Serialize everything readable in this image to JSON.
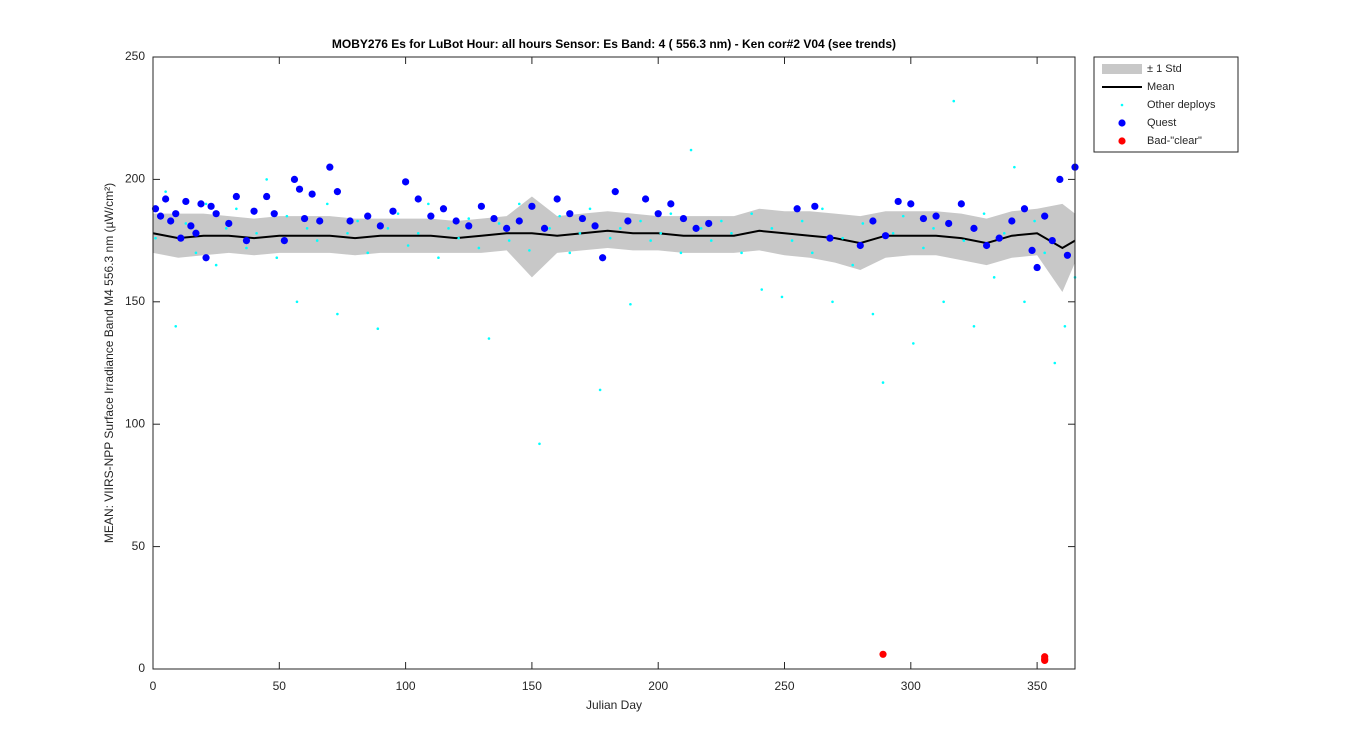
{
  "chart_data": {
    "type": "scatter",
    "title": "MOBY276   Es for LuBot  Hour: all hours  Sensor: Es Band: 4 ( 556.3 nm)  - Ken cor#2 V04 (see trends)",
    "x_label": "Julian Day",
    "y_label": "MEAN: VIIRS-NPP Surface Irradiance Band M4 556.3 nm (µW/cm²)",
    "xlim": [
      0,
      365
    ],
    "ylim": [
      0,
      250
    ],
    "xticks": [
      0,
      50,
      100,
      150,
      200,
      250,
      300,
      350
    ],
    "yticks": [
      0,
      50,
      100,
      150,
      200,
      250
    ],
    "legend": "outside-top-right",
    "series": [
      {
        "name": "± 1 Std",
        "color": "#c8c8c8",
        "style": "band",
        "x": [
          0,
          10,
          20,
          30,
          40,
          50,
          60,
          70,
          80,
          90,
          100,
          110,
          120,
          130,
          140,
          150,
          160,
          170,
          180,
          190,
          200,
          210,
          220,
          230,
          240,
          250,
          260,
          270,
          280,
          290,
          300,
          310,
          320,
          330,
          340,
          350,
          360,
          365
        ],
        "low": [
          170,
          168,
          169,
          170,
          169,
          170,
          170,
          170,
          169,
          170,
          170,
          170,
          170,
          170,
          171,
          160,
          170,
          171,
          172,
          171,
          171,
          170,
          170,
          170,
          171,
          169,
          168,
          166,
          163,
          168,
          169,
          169,
          167,
          165,
          168,
          169,
          154,
          166
        ],
        "high": [
          186,
          186,
          186,
          185,
          184,
          185,
          185,
          185,
          184,
          184,
          184,
          184,
          183,
          184,
          185,
          193,
          185,
          186,
          187,
          186,
          185,
          185,
          185,
          185,
          188,
          187,
          187,
          186,
          185,
          187,
          187,
          187,
          186,
          184,
          187,
          188,
          190,
          186
        ]
      },
      {
        "name": "Mean",
        "color": "#000000",
        "style": "line",
        "x": [
          0,
          10,
          20,
          30,
          40,
          50,
          60,
          70,
          80,
          90,
          100,
          110,
          120,
          130,
          140,
          150,
          160,
          170,
          180,
          190,
          200,
          210,
          220,
          230,
          240,
          250,
          260,
          270,
          280,
          290,
          300,
          310,
          320,
          330,
          340,
          350,
          360,
          365
        ],
        "values": [
          178,
          176,
          177,
          177,
          176,
          177,
          177,
          177,
          176,
          177,
          177,
          177,
          176,
          177,
          178,
          178,
          177,
          178,
          179,
          178,
          178,
          177,
          177,
          177,
          179,
          178,
          177,
          176,
          174,
          177,
          177,
          177,
          176,
          174,
          177,
          178,
          172,
          175
        ]
      },
      {
        "name": "Other deploys",
        "color": "#00ffff",
        "style": "dot",
        "x": [
          1,
          5,
          9,
          13,
          17,
          21,
          25,
          29,
          33,
          37,
          41,
          45,
          49,
          53,
          57,
          61,
          65,
          69,
          73,
          77,
          81,
          85,
          89,
          93,
          97,
          101,
          105,
          109,
          113,
          117,
          121,
          125,
          129,
          133,
          137,
          141,
          145,
          149,
          153,
          157,
          161,
          165,
          169,
          173,
          177,
          181,
          185,
          189,
          193,
          197,
          201,
          205,
          209,
          213,
          217,
          221,
          225,
          229,
          233,
          237,
          241,
          245,
          249,
          253,
          257,
          261,
          265,
          269,
          273,
          277,
          281,
          285,
          289,
          293,
          297,
          301,
          305,
          309,
          313,
          317,
          321,
          325,
          329,
          333,
          337,
          341,
          345,
          349,
          353,
          357,
          361,
          365
        ],
        "values": [
          176,
          195,
          140,
          182,
          170,
          190,
          165,
          180,
          188,
          172,
          178,
          200,
          168,
          185,
          150,
          180,
          175,
          190,
          145,
          178,
          183,
          170,
          139,
          180,
          186,
          173,
          178,
          190,
          168,
          180,
          176,
          184,
          172,
          135,
          182,
          175,
          190,
          171,
          92,
          180,
          185,
          170,
          178,
          188,
          114,
          176,
          180,
          149,
          183,
          175,
          178,
          186,
          170,
          212,
          180,
          175,
          183,
          178,
          170,
          186,
          155,
          180,
          152,
          175,
          183,
          170,
          188,
          150,
          176,
          165,
          182,
          145,
          117,
          178,
          185,
          133,
          172,
          180,
          150,
          232,
          175,
          140,
          186,
          160,
          178,
          205,
          150,
          183,
          170,
          125,
          140,
          160
        ]
      },
      {
        "name": "Quest",
        "color": "#0000ff",
        "style": "big",
        "x": [
          1,
          3,
          5,
          7,
          9,
          11,
          13,
          15,
          17,
          19,
          21,
          23,
          25,
          30,
          33,
          37,
          40,
          45,
          48,
          52,
          56,
          58,
          60,
          63,
          66,
          70,
          73,
          78,
          85,
          90,
          95,
          100,
          105,
          110,
          115,
          120,
          125,
          130,
          135,
          140,
          145,
          150,
          155,
          160,
          165,
          170,
          175,
          178,
          183,
          188,
          195,
          200,
          205,
          210,
          215,
          220,
          255,
          262,
          268,
          280,
          285,
          290,
          295,
          300,
          305,
          310,
          315,
          320,
          325,
          330,
          335,
          340,
          345,
          348,
          350,
          353,
          356,
          359,
          362,
          365
        ],
        "values": [
          188,
          185,
          192,
          183,
          186,
          176,
          191,
          181,
          178,
          190,
          168,
          189,
          186,
          182,
          193,
          175,
          187,
          193,
          186,
          175,
          200,
          196,
          184,
          194,
          183,
          205,
          195,
          183,
          185,
          181,
          187,
          199,
          192,
          185,
          188,
          183,
          181,
          189,
          184,
          180,
          183,
          189,
          180,
          192,
          186,
          184,
          181,
          168,
          195,
          183,
          192,
          186,
          190,
          184,
          180,
          182,
          188,
          189,
          176,
          173,
          183,
          177,
          191,
          190,
          184,
          185,
          182,
          190,
          180,
          173,
          176,
          183,
          188,
          171,
          164,
          185,
          175,
          200,
          169,
          205
        ]
      },
      {
        "name": "Bad-\"clear\"",
        "color": "#ff0000",
        "style": "big",
        "x": [
          289,
          353,
          353,
          353
        ],
        "values": [
          6,
          5,
          4,
          3.5
        ]
      }
    ]
  }
}
